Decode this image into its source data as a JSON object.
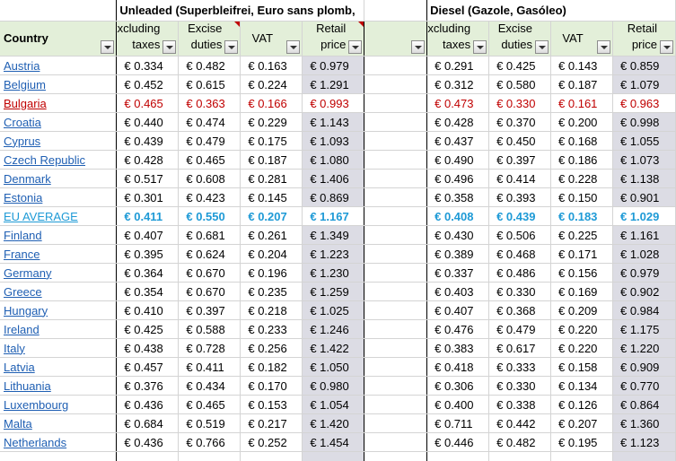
{
  "sections": {
    "unleaded_title": "Unleaded (Superbleifrei, Euro sans plomb,",
    "diesel_title": "Diesel (Gazole, Gasóleo)"
  },
  "columns": {
    "country": "Country",
    "excl_line1": "Excluding",
    "excl_line2": "taxes",
    "excise_line1": "Excise",
    "excise_line2": "duties",
    "vat": "VAT",
    "retail_line1": "Retail",
    "retail_line2": "price"
  },
  "rows": [
    {
      "country": "Austria",
      "u": [
        "€ 0.334",
        "€ 0.482",
        "€ 0.163",
        "€ 0.979"
      ],
      "d": [
        "€ 0.291",
        "€ 0.425",
        "€ 0.143",
        "€ 0.859"
      ]
    },
    {
      "country": "Belgium",
      "u": [
        "€ 0.452",
        "€ 0.615",
        "€ 0.224",
        "€ 1.291"
      ],
      "d": [
        "€ 0.312",
        "€ 0.580",
        "€ 0.187",
        "€ 1.079"
      ]
    },
    {
      "country": "Bulgaria",
      "u": [
        "€ 0.465",
        "€ 0.363",
        "€ 0.166",
        "€ 0.993"
      ],
      "d": [
        "€ 0.473",
        "€ 0.330",
        "€ 0.161",
        "€ 0.963"
      ]
    },
    {
      "country": "Croatia",
      "u": [
        "€ 0.440",
        "€ 0.474",
        "€ 0.229",
        "€ 1.143"
      ],
      "d": [
        "€ 0.428",
        "€ 0.370",
        "€ 0.200",
        "€ 0.998"
      ]
    },
    {
      "country": "Cyprus",
      "u": [
        "€ 0.439",
        "€ 0.479",
        "€ 0.175",
        "€ 1.093"
      ],
      "d": [
        "€ 0.437",
        "€ 0.450",
        "€ 0.168",
        "€ 1.055"
      ]
    },
    {
      "country": "Czech Republic",
      "u": [
        "€ 0.428",
        "€ 0.465",
        "€ 0.187",
        "€ 1.080"
      ],
      "d": [
        "€ 0.490",
        "€ 0.397",
        "€ 0.186",
        "€ 1.073"
      ]
    },
    {
      "country": "Denmark",
      "u": [
        "€ 0.517",
        "€ 0.608",
        "€ 0.281",
        "€ 1.406"
      ],
      "d": [
        "€ 0.496",
        "€ 0.414",
        "€ 0.228",
        "€ 1.138"
      ]
    },
    {
      "country": "Estonia",
      "u": [
        "€ 0.301",
        "€ 0.423",
        "€ 0.145",
        "€ 0.869"
      ],
      "d": [
        "€ 0.358",
        "€ 0.393",
        "€ 0.150",
        "€ 0.901"
      ]
    },
    {
      "country": "EU AVERAGE",
      "u": [
        "€ 0.411",
        "€ 0.550",
        "€ 0.207",
        "€ 1.167"
      ],
      "d": [
        "€ 0.408",
        "€ 0.439",
        "€ 0.183",
        "€ 1.029"
      ]
    },
    {
      "country": "Finland",
      "u": [
        "€ 0.407",
        "€ 0.681",
        "€ 0.261",
        "€ 1.349"
      ],
      "d": [
        "€ 0.430",
        "€ 0.506",
        "€ 0.225",
        "€ 1.161"
      ]
    },
    {
      "country": "France",
      "u": [
        "€ 0.395",
        "€ 0.624",
        "€ 0.204",
        "€ 1.223"
      ],
      "d": [
        "€ 0.389",
        "€ 0.468",
        "€ 0.171",
        "€ 1.028"
      ]
    },
    {
      "country": "Germany",
      "u": [
        "€ 0.364",
        "€ 0.670",
        "€ 0.196",
        "€ 1.230"
      ],
      "d": [
        "€ 0.337",
        "€ 0.486",
        "€ 0.156",
        "€ 0.979"
      ]
    },
    {
      "country": "Greece",
      "u": [
        "€ 0.354",
        "€ 0.670",
        "€ 0.235",
        "€ 1.259"
      ],
      "d": [
        "€ 0.403",
        "€ 0.330",
        "€ 0.169",
        "€ 0.902"
      ]
    },
    {
      "country": "Hungary",
      "u": [
        "€ 0.410",
        "€ 0.397",
        "€ 0.218",
        "€ 1.025"
      ],
      "d": [
        "€ 0.407",
        "€ 0.368",
        "€ 0.209",
        "€ 0.984"
      ]
    },
    {
      "country": "Ireland",
      "u": [
        "€ 0.425",
        "€ 0.588",
        "€ 0.233",
        "€ 1.246"
      ],
      "d": [
        "€ 0.476",
        "€ 0.479",
        "€ 0.220",
        "€ 1.175"
      ]
    },
    {
      "country": "Italy",
      "u": [
        "€ 0.438",
        "€ 0.728",
        "€ 0.256",
        "€ 1.422"
      ],
      "d": [
        "€ 0.383",
        "€ 0.617",
        "€ 0.220",
        "€ 1.220"
      ]
    },
    {
      "country": "Latvia",
      "u": [
        "€ 0.457",
        "€ 0.411",
        "€ 0.182",
        "€ 1.050"
      ],
      "d": [
        "€ 0.418",
        "€ 0.333",
        "€ 0.158",
        "€ 0.909"
      ]
    },
    {
      "country": "Lithuania",
      "u": [
        "€ 0.376",
        "€ 0.434",
        "€ 0.170",
        "€ 0.980"
      ],
      "d": [
        "€ 0.306",
        "€ 0.330",
        "€ 0.134",
        "€ 0.770"
      ]
    },
    {
      "country": "Luxembourg",
      "u": [
        "€ 0.436",
        "€ 0.465",
        "€ 0.153",
        "€ 1.054"
      ],
      "d": [
        "€ 0.400",
        "€ 0.338",
        "€ 0.126",
        "€ 0.864"
      ]
    },
    {
      "country": "Malta",
      "u": [
        "€ 0.684",
        "€ 0.519",
        "€ 0.217",
        "€ 1.420"
      ],
      "d": [
        "€ 0.711",
        "€ 0.442",
        "€ 0.207",
        "€ 1.360"
      ]
    },
    {
      "country": "Netherlands",
      "u": [
        "€ 0.436",
        "€ 0.766",
        "€ 0.252",
        "€ 1.454"
      ],
      "d": [
        "€ 0.446",
        "€ 0.482",
        "€ 0.195",
        "€ 1.123"
      ]
    }
  ],
  "highlight": {
    "red_row_color": "#c00000",
    "eu_row_color": "#1e9ad6",
    "header_fill": "#e3efd9",
    "retail_fill": "#dcdce4",
    "link_color": "#1f5fb3"
  }
}
